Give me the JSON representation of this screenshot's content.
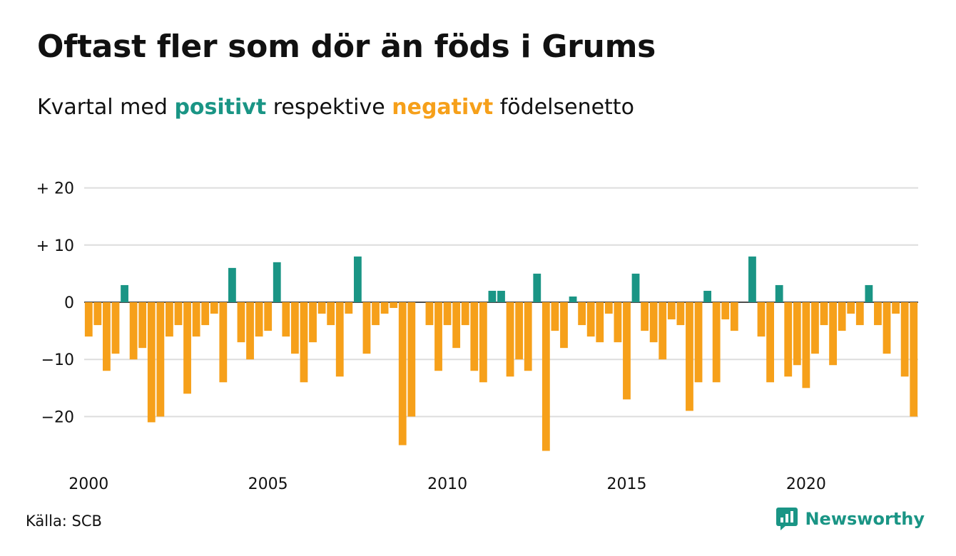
{
  "title": "Oftast fler som dör än föds i Grums",
  "subtitle": {
    "before": "Kvartal med",
    "positive": "positivt",
    "middle": "respektive",
    "negative": "negativt",
    "after": "födelsenetto"
  },
  "source": "Källa: SCB",
  "brand": {
    "name": "Newsworthy",
    "icon": "newsworthy-logo-icon"
  },
  "colors": {
    "positive": "#1a9585",
    "negative": "#f6a01a",
    "grid": "#dddddd",
    "brand": "#1a9585"
  },
  "chart_data": {
    "type": "bar",
    "title": "Oftast fler som dör än föds i Grums",
    "subtitle": "Kvartal med positivt respektive negativt födelsenetto",
    "xlabel": "",
    "ylabel": "",
    "ylim": [
      -27,
      21
    ],
    "grid": true,
    "y_ticks": [
      20,
      10,
      0,
      -10,
      -20
    ],
    "y_tick_labels": [
      "+ 20",
      "+ 10",
      "0",
      "−10",
      "−20"
    ],
    "x_ticks": [
      2000,
      2005,
      2010,
      2015,
      2020
    ],
    "x_tick_labels": [
      "2000",
      "2005",
      "2010",
      "2015",
      "2020"
    ],
    "start_year": 2000,
    "periods_per_year": 4,
    "values": [
      -6,
      -4,
      -12,
      -9,
      3,
      -10,
      -8,
      -21,
      -20,
      -6,
      -4,
      -16,
      -6,
      -4,
      -2,
      -14,
      6,
      -7,
      -10,
      -6,
      -5,
      7,
      -6,
      -9,
      -14,
      -7,
      -2,
      -4,
      -13,
      -2,
      8,
      -9,
      -4,
      -2,
      -1,
      -25,
      -20,
      0,
      -4,
      -12,
      -4,
      -8,
      -4,
      -12,
      -14,
      2,
      2,
      -13,
      -10,
      -12,
      5,
      -26,
      -5,
      -8,
      1,
      -4,
      -6,
      -7,
      -2,
      -7,
      -17,
      5,
      -5,
      -7,
      -10,
      -3,
      -4,
      -19,
      -14,
      2,
      -14,
      -3,
      -5,
      0,
      8,
      -6,
      -14,
      3,
      -13,
      -11,
      -15,
      -9,
      -4,
      -11,
      -5,
      -2,
      -4,
      3,
      -4,
      -9,
      -2,
      -13,
      -20
    ]
  }
}
